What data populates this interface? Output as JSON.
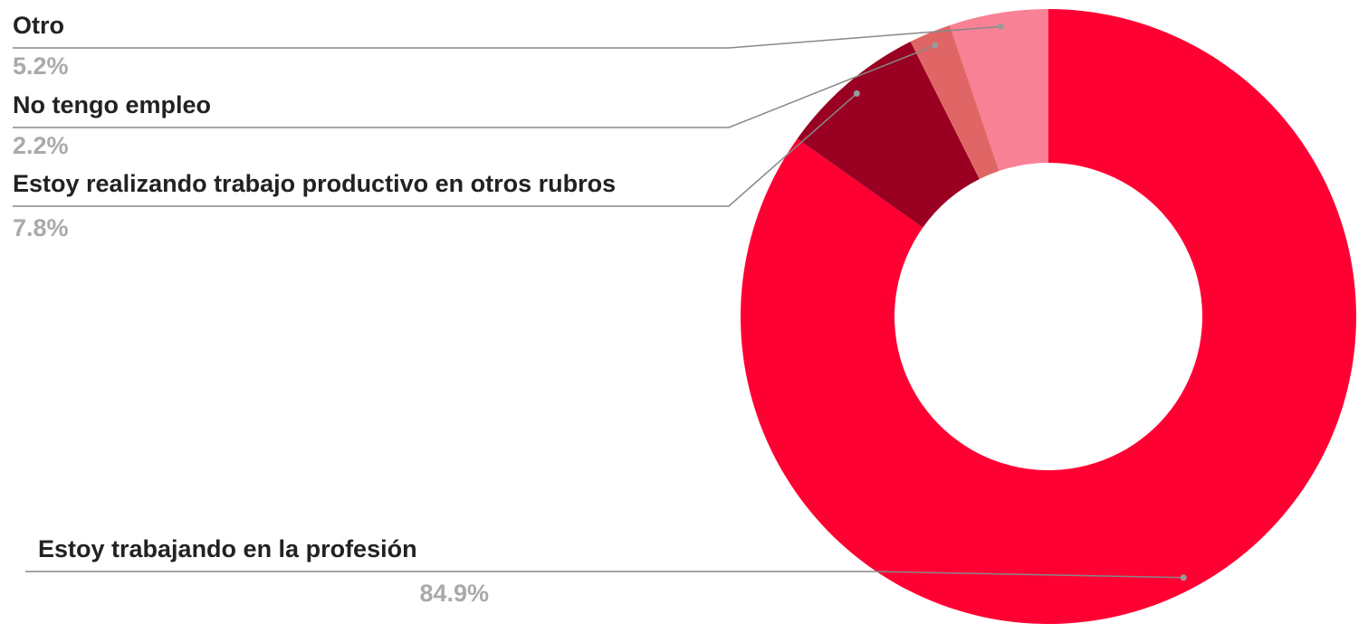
{
  "chart_data": {
    "type": "donut",
    "categories": [
      "Estoy trabajando en la profesión",
      "Estoy realizando trabajo productivo en otros rubros",
      "No tengo empleo",
      "Otro"
    ],
    "values": [
      84.9,
      7.8,
      2.2,
      5.2
    ],
    "value_labels": [
      "84.9%",
      "7.8%",
      "2.2%",
      "5.2%"
    ],
    "colors": [
      "#ff0033",
      "#990022",
      "#e06666",
      "#f98196"
    ]
  }
}
